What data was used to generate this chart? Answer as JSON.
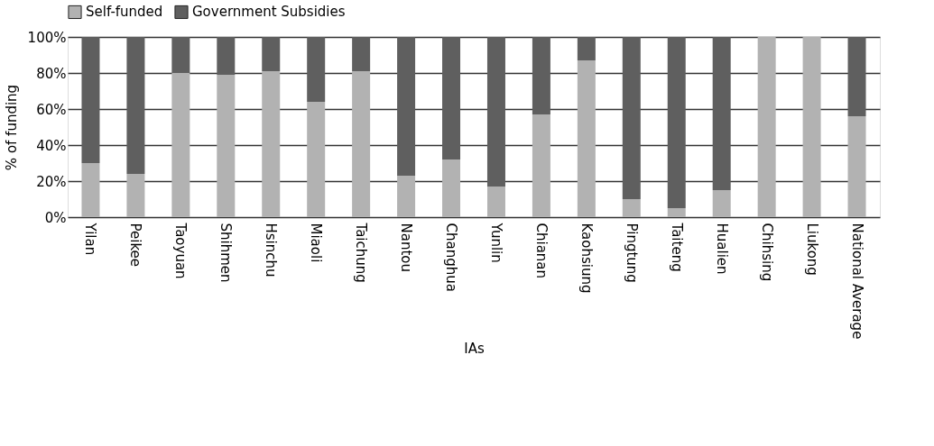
{
  "chart_data": {
    "type": "bar",
    "stacked": true,
    "xlabel": "IAs",
    "ylabel": "% of funding",
    "categories": [
      "Yilan",
      "Peikee",
      "Taoyuan",
      "Shihmen",
      "Hsinchu",
      "Miaoli",
      "Taichung",
      "Nantou",
      "Changhua",
      "Yunlin",
      "Chianan",
      "Kaohsiung",
      "Pingtung",
      "Taiteng",
      "Hualien",
      "Chihsing",
      "Liukong",
      "National Average"
    ],
    "series": [
      {
        "name": "Self-funded",
        "color": "#b2b2b2",
        "values": [
          30,
          24,
          80,
          79,
          81,
          64,
          81,
          23,
          32,
          17,
          57,
          87,
          10,
          5,
          15,
          100,
          100,
          56
        ]
      },
      {
        "name": "Government Subsidies",
        "color": "#5f5f5f",
        "values": [
          70,
          76,
          20,
          21,
          19,
          36,
          19,
          77,
          68,
          83,
          43,
          13,
          90,
          95,
          85,
          0,
          0,
          44
        ]
      }
    ],
    "ylim": [
      0,
      100
    ],
    "yticks": [
      {
        "value": 0,
        "label": "0%"
      },
      {
        "value": 20,
        "label": "20%"
      },
      {
        "value": 40,
        "label": "40%"
      },
      {
        "value": 60,
        "label": "60%"
      },
      {
        "value": 80,
        "label": "80%"
      },
      {
        "value": 100,
        "label": "100%"
      }
    ],
    "grid": "y",
    "legend": "top"
  }
}
